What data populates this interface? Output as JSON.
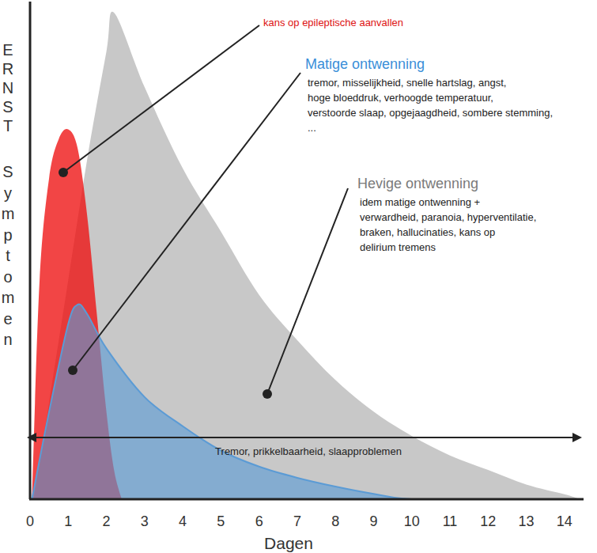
{
  "chart_data": {
    "type": "area",
    "y_label": "ERNST Symptomen",
    "x_label": "Dagen",
    "xlim": [
      0,
      14.5
    ],
    "xticks": [
      0,
      1,
      2,
      3,
      4,
      5,
      6,
      7,
      8,
      9,
      10,
      11,
      12,
      13,
      14
    ],
    "ylim": [
      0,
      100
    ],
    "yticks": [],
    "tick_labels": "x",
    "grid": false,
    "arrow_label": "Tremor, prikkelbaarheid, slaapproblemen",
    "series": [
      {
        "name": "Hevige ontwenning",
        "color": "#c8c8c8",
        "description": [
          "idem matige ontwenning +",
          "verwardheid, paranoia, hyperventilatie,",
          "braken, hallucinaties, kans op",
          "delirium tremens"
        ],
        "x": [
          0.1,
          1,
          1.5,
          2,
          2.2,
          3,
          4,
          5,
          6,
          7,
          8,
          9,
          10,
          11,
          12,
          13,
          14,
          14.4
        ],
        "values": [
          0,
          45,
          70,
          92,
          100,
          84.7,
          68,
          55,
          42,
          32.7,
          24.5,
          18,
          13,
          9,
          6,
          3,
          1,
          0
        ]
      },
      {
        "name": "kans op epileptische aanvallen",
        "color": "#ee1111",
        "description": [],
        "x": [
          0.05,
          0.25,
          0.5,
          0.75,
          1,
          1.25,
          1.5,
          1.75,
          2,
          2.2,
          2.4
        ],
        "values": [
          0,
          45,
          66,
          74,
          76,
          72,
          58,
          38,
          18,
          6,
          0
        ]
      },
      {
        "name": "Matige ontwenning",
        "color": "#5b9bd5",
        "description": [
          "tremor, misselijkheid, snelle hartslag, angst,",
          "hoge bloeddruk, verhoogde temperatuur,",
          "verstoorde slaap, opgejaagdheid, sombere stemming,",
          "..."
        ],
        "x": [
          0.05,
          0.5,
          1,
          1.25,
          1.5,
          2,
          3,
          4,
          5,
          6,
          7,
          8,
          9,
          10,
          12.3
        ],
        "values": [
          0,
          18,
          36,
          40,
          38,
          31,
          21,
          15,
          10,
          6.7,
          4.4,
          2.6,
          1.1,
          0,
          0
        ]
      }
    ]
  }
}
